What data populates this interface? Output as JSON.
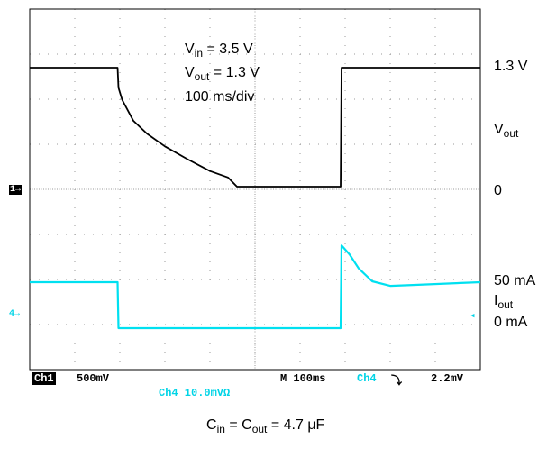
{
  "colors": {
    "ch1": "#000000",
    "ch4": "#00e0f0",
    "grid": "#9a9a9a",
    "frame": "#000000"
  },
  "annotations": {
    "vin_sym": "V",
    "vin_sub": "in",
    "vin_val": " = 3.5 V",
    "vout_sym": "V",
    "vout_sub": "out",
    "vout_val": " = 1.3 V",
    "timebase": "100 ms/div"
  },
  "right_labels": {
    "v13": "1.3 V",
    "vout_sym": "V",
    "vout_sub": "out",
    "zero": "0",
    "i50": "50 mA",
    "iout_sym": "I",
    "iout_sub": "out",
    "i0": "0 mA"
  },
  "scope_status": {
    "ch1_tag": "Ch1",
    "ch1_scale": "500mV",
    "ch4_scale": "Ch4  10.0mVΩ",
    "time": "M 100ms",
    "trig_src": "Ch4",
    "trig_slope": "⤵",
    "trig_level": "2.2mV",
    "ch1_marker": "1→",
    "ch4_marker": "4→"
  },
  "caption": {
    "c1": "C",
    "c1_sub": "in",
    "mid": " = C",
    "c2_sub": "out",
    "val": " = 4.7 μF"
  },
  "chart_data": {
    "type": "line",
    "title": "",
    "xlabel": "",
    "ylabel": "",
    "x_units": "divisions (100 ms/div)",
    "xlim": [
      0,
      10
    ],
    "grid": true,
    "series": [
      {
        "name": "Vout",
        "x": [
          0,
          1.95,
          1.97,
          2.05,
          2.3,
          2.6,
          3.0,
          3.5,
          4.0,
          4.4,
          4.6,
          5.0,
          6.0,
          6.9,
          6.92,
          10
        ],
        "y": [
          1.3,
          1.3,
          1.08,
          0.95,
          0.72,
          0.58,
          0.44,
          0.3,
          0.17,
          0.1,
          0.0,
          0.0,
          0.0,
          0.0,
          1.3,
          1.3
        ]
      },
      {
        "name": "Iout",
        "x": [
          0,
          1.95,
          1.97,
          6.9,
          6.92,
          7.1,
          7.3,
          7.6,
          8.0,
          8.5,
          10
        ],
        "y": [
          50,
          50,
          0,
          0,
          90,
          80,
          65,
          51,
          46,
          47,
          50
        ]
      }
    ]
  }
}
